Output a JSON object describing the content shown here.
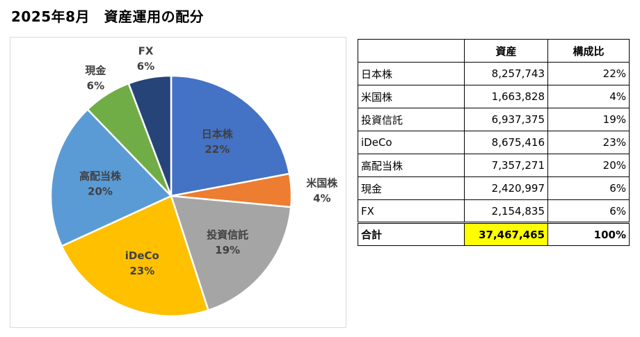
{
  "page_title": "2025年8月　資産運用の配分",
  "chart_data": {
    "type": "pie",
    "title": "",
    "start_angle_deg": 0,
    "direction": "clockwise",
    "slices": [
      {
        "label": "日本株",
        "value": 8257743,
        "percent_label": "22%",
        "color": "#4472c4",
        "label_position": "inside"
      },
      {
        "label": "米国株",
        "value": 1663828,
        "percent_label": "4%",
        "color": "#ed7d31",
        "label_position": "outside"
      },
      {
        "label": "投資信託",
        "value": 6937375,
        "percent_label": "19%",
        "color": "#a5a5a5",
        "label_position": "inside"
      },
      {
        "label": "iDeCo",
        "value": 8675416,
        "percent_label": "23%",
        "color": "#ffc000",
        "label_position": "inside"
      },
      {
        "label": "高配当株",
        "value": 7357271,
        "percent_label": "20%",
        "color": "#5b9bd5",
        "label_position": "inside"
      },
      {
        "label": "現金",
        "value": 2420997,
        "percent_label": "6%",
        "color": "#70ad47",
        "label_position": "outside"
      },
      {
        "label": "FX",
        "value": 2154835,
        "percent_label": "6%",
        "color": "#264478",
        "label_position": "outside"
      }
    ]
  },
  "table": {
    "headers": [
      "",
      "資産",
      "構成比"
    ],
    "rows": [
      {
        "name": "日本株",
        "value": "8,257,743",
        "ratio": "22%"
      },
      {
        "name": "米国株",
        "value": "1,663,828",
        "ratio": "4%"
      },
      {
        "name": "投資信託",
        "value": "6,937,375",
        "ratio": "19%"
      },
      {
        "name": "iDeCo",
        "value": "8,675,416",
        "ratio": "23%"
      },
      {
        "name": "高配当株",
        "value": "7,357,271",
        "ratio": "20%"
      },
      {
        "name": "現金",
        "value": "2,420,997",
        "ratio": "6%"
      },
      {
        "name": "FX",
        "value": "2,154,835",
        "ratio": "6%"
      }
    ],
    "total": {
      "name": "合計",
      "value": "37,467,465",
      "ratio": "100%"
    }
  }
}
